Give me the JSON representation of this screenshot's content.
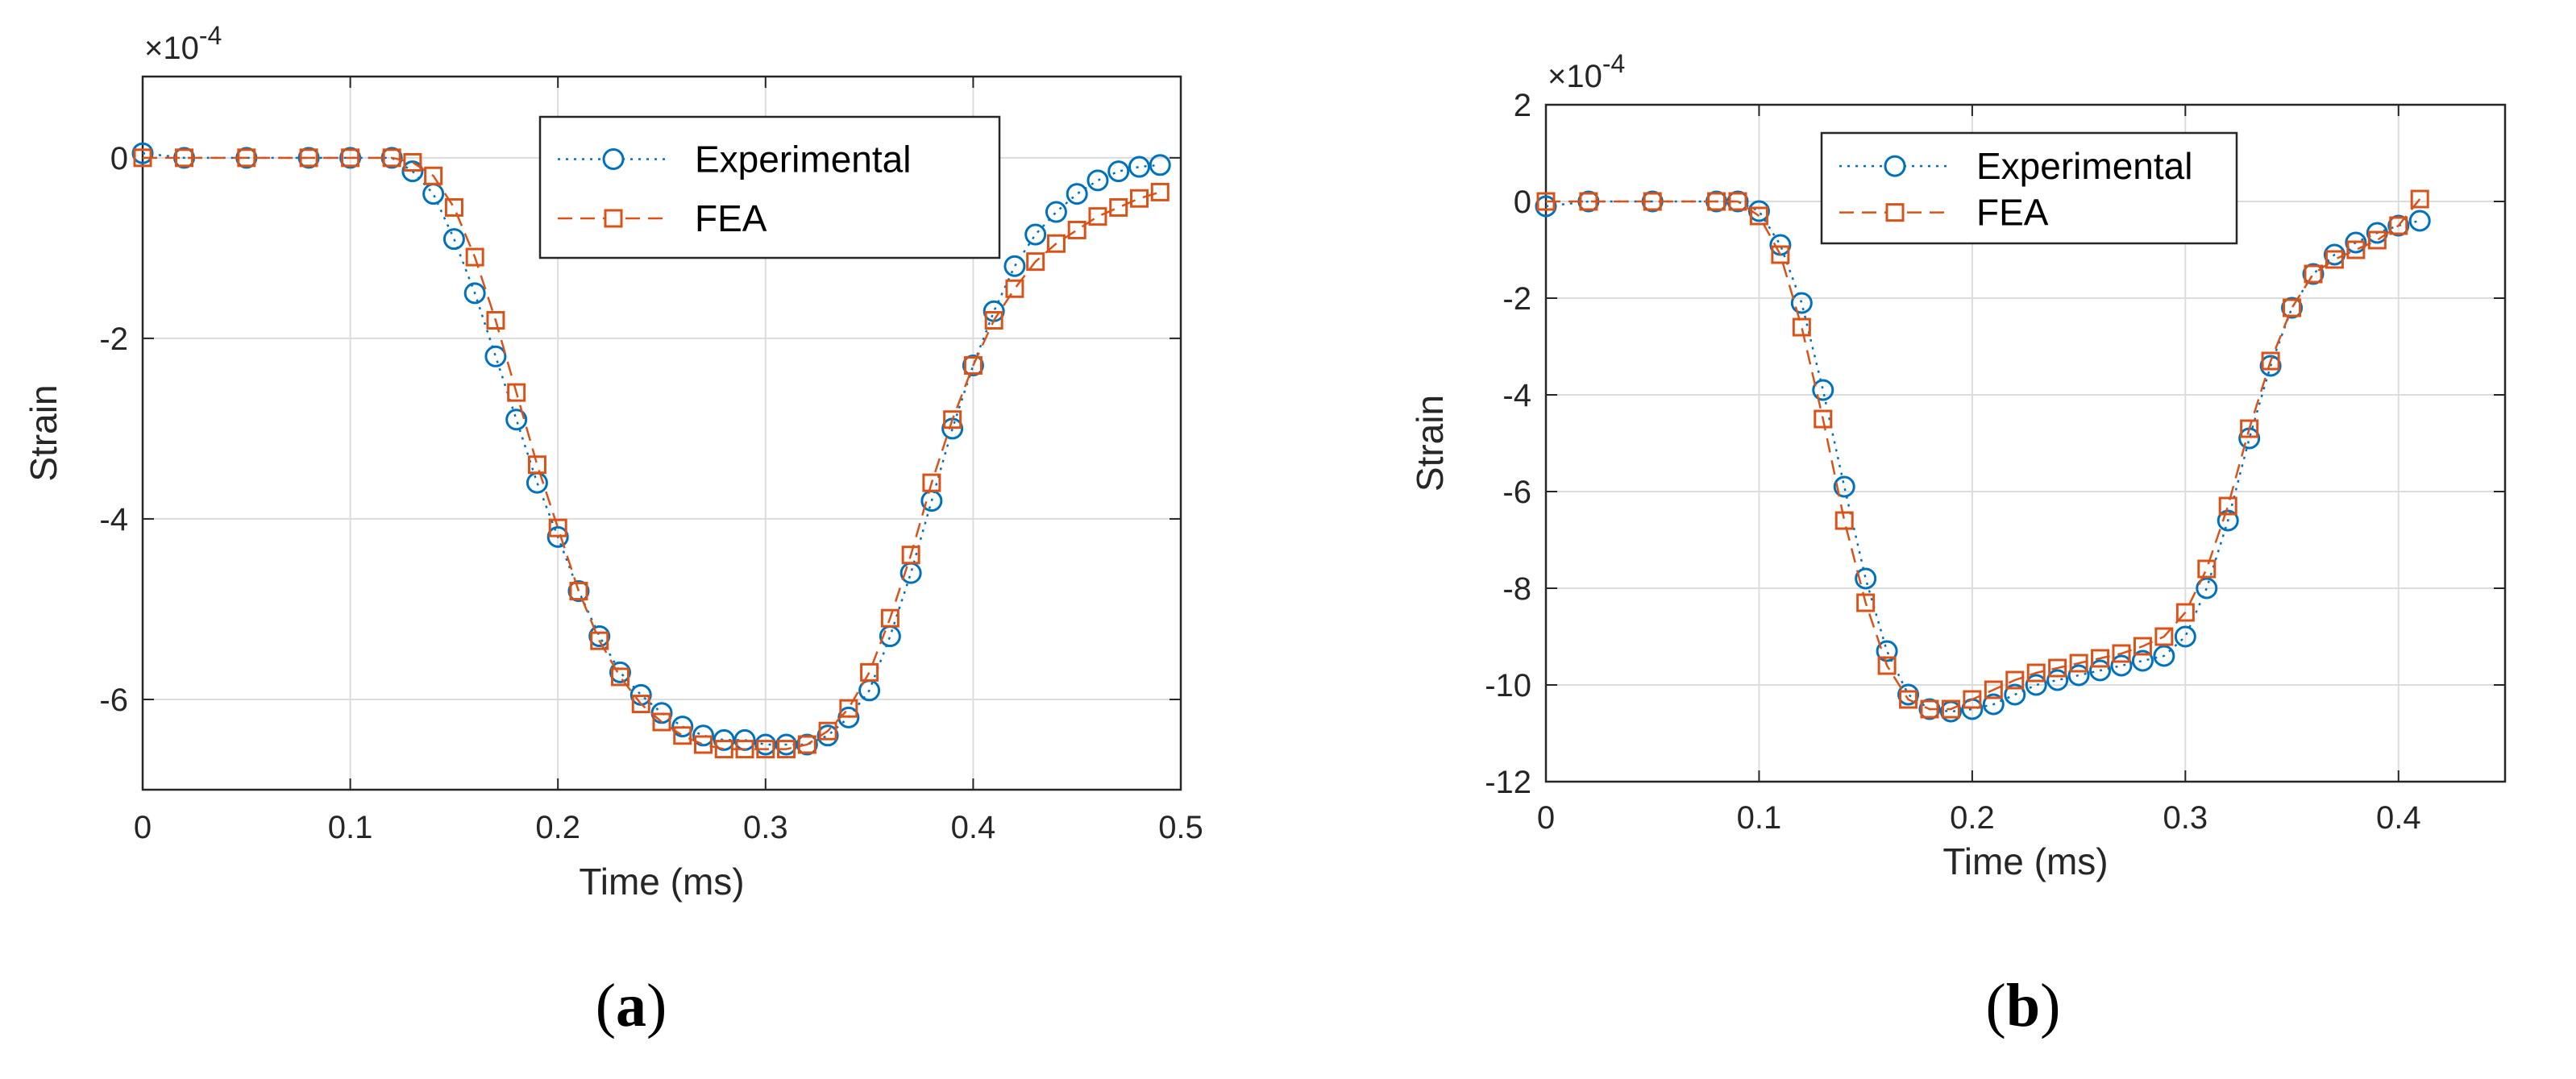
{
  "figure": {
    "panels": [
      {
        "id": "a",
        "caption_letter": "a"
      },
      {
        "id": "b",
        "caption_letter": "b"
      }
    ]
  },
  "chart_data": [
    {
      "type": "line",
      "panel": "a",
      "title": "",
      "xlabel": "Time (ms)",
      "ylabel": "Strain",
      "exponent_label": "×10",
      "exponent": "-4",
      "xlim": [
        0,
        0.5
      ],
      "ylim": [
        -7,
        0.9
      ],
      "xticks": [
        0,
        0.1,
        0.2,
        0.3,
        0.4,
        0.5
      ],
      "xtick_labels": [
        "0",
        "0.1",
        "0.2",
        "0.3",
        "0.4",
        "0.5"
      ],
      "yticks": [
        0,
        -2,
        -4,
        -6
      ],
      "ytick_labels": [
        "0",
        "-2",
        "-4",
        "-6"
      ],
      "grid": true,
      "legend_position": "top-right",
      "colors": {
        "experimental": "#0072BD",
        "fea": "#D95319"
      },
      "series": [
        {
          "name": "Experimental",
          "marker": "circle",
          "line": "dotted",
          "points": [
            [
              0,
              0.05
            ],
            [
              0.02,
              0
            ],
            [
              0.05,
              0
            ],
            [
              0.08,
              0
            ],
            [
              0.1,
              0
            ],
            [
              0.12,
              0
            ],
            [
              0.13,
              -0.15
            ],
            [
              0.14,
              -0.4
            ],
            [
              0.15,
              -0.9
            ],
            [
              0.16,
              -1.5
            ],
            [
              0.17,
              -2.2
            ],
            [
              0.18,
              -2.9
            ],
            [
              0.19,
              -3.6
            ],
            [
              0.2,
              -4.2
            ],
            [
              0.21,
              -4.8
            ],
            [
              0.22,
              -5.3
            ],
            [
              0.23,
              -5.7
            ],
            [
              0.24,
              -5.95
            ],
            [
              0.25,
              -6.15
            ],
            [
              0.26,
              -6.3
            ],
            [
              0.27,
              -6.4
            ],
            [
              0.28,
              -6.45
            ],
            [
              0.29,
              -6.45
            ],
            [
              0.3,
              -6.5
            ],
            [
              0.31,
              -6.5
            ],
            [
              0.32,
              -6.5
            ],
            [
              0.33,
              -6.4
            ],
            [
              0.34,
              -6.2
            ],
            [
              0.35,
              -5.9
            ],
            [
              0.36,
              -5.3
            ],
            [
              0.37,
              -4.6
            ],
            [
              0.38,
              -3.8
            ],
            [
              0.39,
              -3.0
            ],
            [
              0.4,
              -2.3
            ],
            [
              0.41,
              -1.7
            ],
            [
              0.42,
              -1.2
            ],
            [
              0.43,
              -0.85
            ],
            [
              0.44,
              -0.6
            ],
            [
              0.45,
              -0.4
            ],
            [
              0.46,
              -0.25
            ],
            [
              0.47,
              -0.15
            ],
            [
              0.48,
              -0.1
            ],
            [
              0.49,
              -0.08
            ]
          ]
        },
        {
          "name": "FEA",
          "marker": "square",
          "line": "dashed",
          "points": [
            [
              0,
              0
            ],
            [
              0.02,
              0
            ],
            [
              0.05,
              0
            ],
            [
              0.08,
              0
            ],
            [
              0.1,
              0
            ],
            [
              0.12,
              0
            ],
            [
              0.13,
              -0.05
            ],
            [
              0.14,
              -0.2
            ],
            [
              0.15,
              -0.55
            ],
            [
              0.16,
              -1.1
            ],
            [
              0.17,
              -1.8
            ],
            [
              0.18,
              -2.6
            ],
            [
              0.19,
              -3.4
            ],
            [
              0.2,
              -4.1
            ],
            [
              0.21,
              -4.8
            ],
            [
              0.22,
              -5.35
            ],
            [
              0.23,
              -5.75
            ],
            [
              0.24,
              -6.05
            ],
            [
              0.25,
              -6.25
            ],
            [
              0.26,
              -6.4
            ],
            [
              0.27,
              -6.5
            ],
            [
              0.28,
              -6.55
            ],
            [
              0.29,
              -6.55
            ],
            [
              0.3,
              -6.55
            ],
            [
              0.31,
              -6.55
            ],
            [
              0.32,
              -6.5
            ],
            [
              0.33,
              -6.35
            ],
            [
              0.34,
              -6.1
            ],
            [
              0.35,
              -5.7
            ],
            [
              0.36,
              -5.1
            ],
            [
              0.37,
              -4.4
            ],
            [
              0.38,
              -3.6
            ],
            [
              0.39,
              -2.9
            ],
            [
              0.4,
              -2.3
            ],
            [
              0.41,
              -1.8
            ],
            [
              0.42,
              -1.45
            ],
            [
              0.43,
              -1.15
            ],
            [
              0.44,
              -0.95
            ],
            [
              0.45,
              -0.8
            ],
            [
              0.46,
              -0.65
            ],
            [
              0.47,
              -0.55
            ],
            [
              0.48,
              -0.45
            ],
            [
              0.49,
              -0.38
            ]
          ]
        }
      ]
    },
    {
      "type": "line",
      "panel": "b",
      "title": "",
      "xlabel": "Time (ms)",
      "ylabel": "Strain",
      "exponent_label": "×10",
      "exponent": "-4",
      "xlim": [
        0,
        0.45
      ],
      "ylim": [
        -12,
        2
      ],
      "xticks": [
        0,
        0.1,
        0.2,
        0.3,
        0.4
      ],
      "xtick_labels": [
        "0",
        "0.1",
        "0.2",
        "0.3",
        "0.4"
      ],
      "yticks": [
        2,
        0,
        -2,
        -4,
        -6,
        -8,
        -10,
        -12
      ],
      "ytick_labels": [
        "2",
        "0",
        "-2",
        "-4",
        "-6",
        "-8",
        "-10",
        "-12"
      ],
      "grid": true,
      "legend_position": "top-right",
      "colors": {
        "experimental": "#0072BD",
        "fea": "#D95319"
      },
      "series": [
        {
          "name": "Experimental",
          "marker": "circle",
          "line": "dotted",
          "points": [
            [
              0,
              -0.1
            ],
            [
              0.02,
              0
            ],
            [
              0.05,
              0
            ],
            [
              0.08,
              0
            ],
            [
              0.09,
              0
            ],
            [
              0.1,
              -0.2
            ],
            [
              0.11,
              -0.9
            ],
            [
              0.12,
              -2.1
            ],
            [
              0.13,
              -3.9
            ],
            [
              0.14,
              -5.9
            ],
            [
              0.15,
              -7.8
            ],
            [
              0.16,
              -9.3
            ],
            [
              0.17,
              -10.2
            ],
            [
              0.18,
              -10.5
            ],
            [
              0.19,
              -10.55
            ],
            [
              0.2,
              -10.5
            ],
            [
              0.21,
              -10.4
            ],
            [
              0.22,
              -10.2
            ],
            [
              0.23,
              -10.0
            ],
            [
              0.24,
              -9.9
            ],
            [
              0.25,
              -9.8
            ],
            [
              0.26,
              -9.7
            ],
            [
              0.27,
              -9.6
            ],
            [
              0.28,
              -9.5
            ],
            [
              0.29,
              -9.4
            ],
            [
              0.3,
              -9.0
            ],
            [
              0.31,
              -8.0
            ],
            [
              0.32,
              -6.6
            ],
            [
              0.33,
              -4.9
            ],
            [
              0.34,
              -3.4
            ],
            [
              0.35,
              -2.2
            ],
            [
              0.36,
              -1.5
            ],
            [
              0.37,
              -1.1
            ],
            [
              0.38,
              -0.85
            ],
            [
              0.39,
              -0.65
            ],
            [
              0.4,
              -0.5
            ],
            [
              0.41,
              -0.4
            ]
          ]
        },
        {
          "name": "FEA",
          "marker": "square",
          "line": "dashed",
          "points": [
            [
              0,
              0
            ],
            [
              0.02,
              0
            ],
            [
              0.05,
              0
            ],
            [
              0.08,
              0
            ],
            [
              0.09,
              0
            ],
            [
              0.1,
              -0.3
            ],
            [
              0.11,
              -1.1
            ],
            [
              0.12,
              -2.6
            ],
            [
              0.13,
              -4.5
            ],
            [
              0.14,
              -6.6
            ],
            [
              0.15,
              -8.3
            ],
            [
              0.16,
              -9.6
            ],
            [
              0.17,
              -10.3
            ],
            [
              0.18,
              -10.5
            ],
            [
              0.19,
              -10.5
            ],
            [
              0.2,
              -10.3
            ],
            [
              0.21,
              -10.1
            ],
            [
              0.22,
              -9.9
            ],
            [
              0.23,
              -9.75
            ],
            [
              0.24,
              -9.65
            ],
            [
              0.25,
              -9.55
            ],
            [
              0.26,
              -9.45
            ],
            [
              0.27,
              -9.35
            ],
            [
              0.28,
              -9.2
            ],
            [
              0.29,
              -9.0
            ],
            [
              0.3,
              -8.5
            ],
            [
              0.31,
              -7.6
            ],
            [
              0.32,
              -6.3
            ],
            [
              0.33,
              -4.7
            ],
            [
              0.34,
              -3.3
            ],
            [
              0.35,
              -2.2
            ],
            [
              0.36,
              -1.5
            ],
            [
              0.37,
              -1.2
            ],
            [
              0.38,
              -1.0
            ],
            [
              0.39,
              -0.8
            ],
            [
              0.4,
              -0.5
            ],
            [
              0.41,
              0.05
            ]
          ]
        }
      ]
    }
  ]
}
